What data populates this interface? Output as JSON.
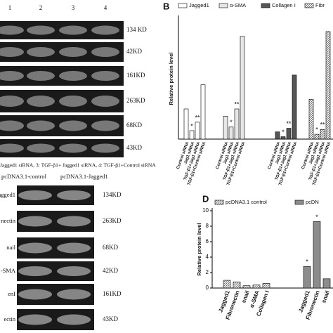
{
  "panel_a": {
    "lanes": [
      "1",
      "2",
      "3",
      "4"
    ],
    "rows": [
      "134 KD",
      "42KD",
      "161KD",
      "263KD",
      "68KD",
      "43KD"
    ],
    "caption": "Jagged1 siRNA, 3: TGF-β1+ Jagged1 siRNA, 4: TGF-β1+Control siRNA"
  },
  "panel_c": {
    "lanes": [
      "pcDNA3.1-control",
      "pcDNA3.1-Jagged1"
    ],
    "row_names": [
      "agged1",
      "nectin",
      "nail",
      "-SMA",
      "enI",
      "ectin"
    ],
    "rows": [
      "134KD",
      "263KD",
      "68KD",
      "42KD",
      "161KD",
      "43KD"
    ]
  },
  "chart_data": [
    {
      "type": "bar",
      "panel": "B",
      "y_label": "Relative protein level",
      "ylim": [
        0,
        1
      ],
      "categories": [
        "Control siRNA",
        "Jag1 siRNA",
        "TGF-β1+Jag1 siRNA",
        "TGF-β1+Control siRNA"
      ],
      "series": [
        {
          "name": "Jagged1",
          "color": "#ffffff",
          "values": [
            0.25,
            0.07,
            0.14,
            0.45
          ],
          "annotations": [
            null,
            "*",
            "**",
            null
          ]
        },
        {
          "name": "α-SMA",
          "color": "#e6e6e6",
          "values": [
            0.19,
            0.1,
            0.25,
            0.85
          ],
          "annotations": [
            null,
            "*",
            "**",
            null
          ]
        },
        {
          "name": "Collagen I",
          "color": "#555555",
          "values": [
            0.06,
            0.02,
            0.09,
            0.53
          ],
          "annotations": [
            null,
            "*",
            "**",
            null
          ]
        },
        {
          "name": "Fibr",
          "color": "#bdbdbd",
          "values": [
            0.33,
            0.04,
            0.08,
            0.89
          ],
          "annotations": [
            null,
            "*",
            "**",
            null
          ]
        }
      ]
    },
    {
      "type": "bar",
      "panel": "D",
      "y_label": "Relative protein level",
      "ylim": [
        0,
        10
      ],
      "yticks": [
        0,
        2,
        4,
        6,
        8,
        10
      ],
      "categories": [
        "Jagged1",
        "Fibronectin",
        "snail",
        "α-SMA",
        "Collagen I"
      ],
      "series": [
        {
          "name": "pcDNA3.1 control",
          "color": "#d9d9d9",
          "values": [
            1.0,
            0.8,
            0.3,
            0.4,
            0.6
          ],
          "annotations": [
            null,
            null,
            null,
            null,
            null
          ]
        },
        {
          "name": "pcDN",
          "color": "#8c8c8c",
          "values": [
            2.8,
            8.6,
            1.2,
            null,
            null
          ],
          "annotations": [
            "*",
            "*",
            null,
            null,
            null
          ]
        }
      ]
    }
  ]
}
